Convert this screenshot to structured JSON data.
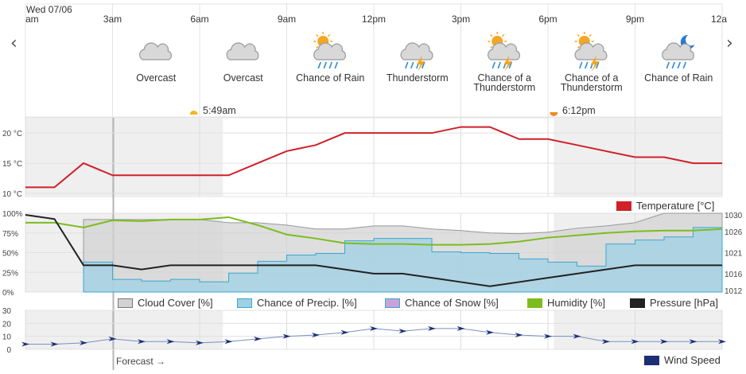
{
  "header": {
    "date_label": "Wed 07/06",
    "time_ticks": [
      "am",
      "3am",
      "6am",
      "9am",
      "12pm",
      "3pm",
      "6pm",
      "9pm",
      "12a"
    ]
  },
  "nav": {
    "prev_icon": "‹",
    "next_icon": "›"
  },
  "conditions": [
    {
      "label": "Overcast",
      "icon": "cloud-icon"
    },
    {
      "label": "Overcast",
      "icon": "cloud-icon"
    },
    {
      "label": "Chance of Rain",
      "icon": "sun-cloud-rain-icon"
    },
    {
      "label": "Thunderstorm",
      "icon": "cloud-thunder-icon"
    },
    {
      "label": "Chance of a Thunderstorm",
      "icon": "sun-cloud-thunder-icon"
    },
    {
      "label": "Chance of a Thunderstorm",
      "icon": "sun-cloud-thunder-icon"
    },
    {
      "label": "Chance of Rain",
      "icon": "moon-cloud-rain-icon"
    }
  ],
  "sun": {
    "sunrise": "5:49am",
    "sunset": "6:12pm"
  },
  "footer": {
    "forecast_label": "Forecast →"
  },
  "colors": {
    "temperature": "#d0202a",
    "cloud_cover": "#d3d3d3",
    "precip": "#9fd0e4",
    "humidity": "#7cbd1e",
    "pressure": "#222222",
    "wind": "#1e2e74",
    "night_shade": "#efefef"
  },
  "chart_data": [
    {
      "type": "line",
      "title": "Temperature",
      "legend": [
        "Temperature [°C]"
      ],
      "x": [
        "12am",
        "1am",
        "2am",
        "3am",
        "4am",
        "5am",
        "6am",
        "7am",
        "8am",
        "9am",
        "10am",
        "11am",
        "12pm",
        "1pm",
        "2pm",
        "3pm",
        "4pm",
        "5pm",
        "6pm",
        "7pm",
        "8pm",
        "9pm",
        "10pm",
        "11pm",
        "12am"
      ],
      "series": [
        {
          "name": "Temperature [°C]",
          "values": [
            11,
            11,
            15,
            13,
            13,
            13,
            13,
            13,
            15,
            17,
            18,
            20,
            20,
            20,
            20,
            21,
            21,
            19,
            19,
            18,
            17,
            16,
            16,
            15,
            15
          ]
        }
      ],
      "y_ticks": [
        "10 °C",
        "15 °C",
        "20 °C"
      ],
      "ylim": [
        10,
        22
      ]
    },
    {
      "type": "area",
      "legend": [
        "Cloud Cover [%]",
        "Chance of Precip. [%]",
        "Chance of Snow [%]",
        "Humidity [%]",
        "Pressure [hPa]"
      ],
      "x": [
        "12am",
        "1am",
        "2am",
        "3am",
        "4am",
        "5am",
        "6am",
        "7am",
        "8am",
        "9am",
        "10am",
        "11am",
        "12pm",
        "1pm",
        "2pm",
        "3pm",
        "4pm",
        "5pm",
        "6pm",
        "7pm",
        "8pm",
        "9pm",
        "10pm",
        "11pm",
        "12am"
      ],
      "series": [
        {
          "name": "Cloud Cover [%]",
          "values": [
            null,
            null,
            92,
            92,
            92,
            92,
            92,
            88,
            88,
            85,
            80,
            80,
            84,
            84,
            80,
            78,
            75,
            74,
            76,
            81,
            84,
            88,
            100,
            100,
            100
          ]
        },
        {
          "name": "Chance of Precip. [%]",
          "values": [
            null,
            null,
            38,
            16,
            14,
            16,
            13,
            24,
            39,
            47,
            49,
            65,
            68,
            68,
            51,
            50,
            49,
            42,
            38,
            33,
            61,
            66,
            70,
            82,
            82
          ]
        },
        {
          "name": "Chance of Snow [%]",
          "values": [
            null,
            null,
            0,
            0,
            0,
            0,
            0,
            0,
            0,
            0,
            0,
            0,
            0,
            0,
            0,
            0,
            0,
            0,
            0,
            0,
            0,
            0,
            0,
            0,
            0
          ]
        },
        {
          "name": "Humidity [%]",
          "values": [
            88,
            88,
            82,
            91,
            90,
            92,
            92,
            95,
            85,
            73,
            68,
            62,
            61,
            61,
            60,
            60,
            61,
            64,
            69,
            72,
            75,
            77,
            78,
            78,
            80
          ]
        },
        {
          "name": "Pressure [hPa]",
          "values": [
            1030,
            1029,
            1018,
            1018,
            1017,
            1018,
            1018,
            1018,
            1018,
            1018,
            1018,
            1017,
            1016,
            1016,
            1015,
            1014,
            1013,
            1014,
            1015,
            1016,
            1017,
            1018,
            1018,
            1018,
            1018
          ]
        }
      ],
      "y_ticks_left": [
        "0%",
        "25%",
        "50%",
        "75%",
        "100%"
      ],
      "y_ticks_right": [
        "1012",
        "1016",
        "1021",
        "1026",
        "1030"
      ],
      "ylim_left": [
        0,
        100
      ],
      "ylim_right": [
        1012,
        1030
      ]
    },
    {
      "type": "line",
      "legend": [
        "Wind Speed"
      ],
      "x": [
        "12am",
        "1am",
        "2am",
        "3am",
        "4am",
        "5am",
        "6am",
        "7am",
        "8am",
        "9am",
        "10am",
        "11am",
        "12pm",
        "1pm",
        "2pm",
        "3pm",
        "4pm",
        "5pm",
        "6pm",
        "7pm",
        "8pm",
        "9pm",
        "10pm",
        "11pm",
        "12am"
      ],
      "series": [
        {
          "name": "Wind Speed",
          "values": [
            4,
            4,
            5,
            8,
            6,
            6,
            5,
            6,
            8,
            10,
            11,
            13,
            16,
            14,
            16,
            16,
            13,
            11,
            10,
            10,
            6,
            6,
            6,
            6,
            6
          ]
        }
      ],
      "y_ticks": [
        "0",
        "10",
        "20",
        "30"
      ],
      "ylim": [
        0,
        30
      ]
    }
  ]
}
